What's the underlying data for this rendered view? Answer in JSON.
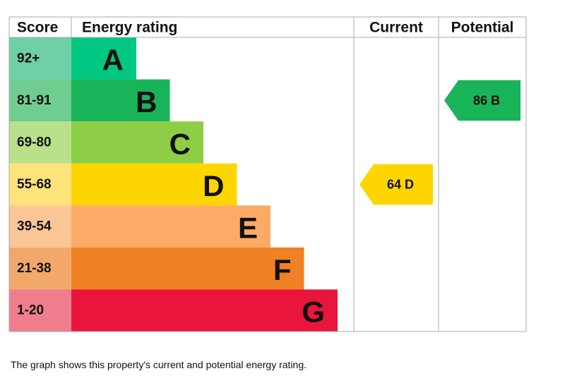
{
  "chart_data": {
    "type": "bar",
    "headers": {
      "score": "Score",
      "rating": "Energy rating",
      "current": "Current",
      "potential": "Potential"
    },
    "bands": [
      {
        "score": "92+",
        "letter": "A",
        "color": "#00c781",
        "score_bg": "#6fcfa7"
      },
      {
        "score": "81-91",
        "letter": "B",
        "color": "#19b459",
        "score_bg": "#6fcd8f"
      },
      {
        "score": "69-80",
        "letter": "C",
        "color": "#8dce46",
        "score_bg": "#b9e08a"
      },
      {
        "score": "55-68",
        "letter": "D",
        "color": "#ffd500",
        "score_bg": "#fde37a"
      },
      {
        "score": "39-54",
        "letter": "E",
        "color": "#fcaa65",
        "score_bg": "#fbc596"
      },
      {
        "score": "21-38",
        "letter": "F",
        "color": "#ef8023",
        "score_bg": "#f2a86a"
      },
      {
        "score": "1-20",
        "letter": "G",
        "color": "#e9153b",
        "score_bg": "#f07d8e"
      }
    ],
    "current": {
      "value": 64,
      "letter": "D",
      "label": "64  D",
      "color": "#ffd500"
    },
    "potential": {
      "value": 86,
      "letter": "B",
      "label": "86  B",
      "color": "#19b459"
    }
  },
  "caption": "The graph shows this property's current and potential energy rating."
}
